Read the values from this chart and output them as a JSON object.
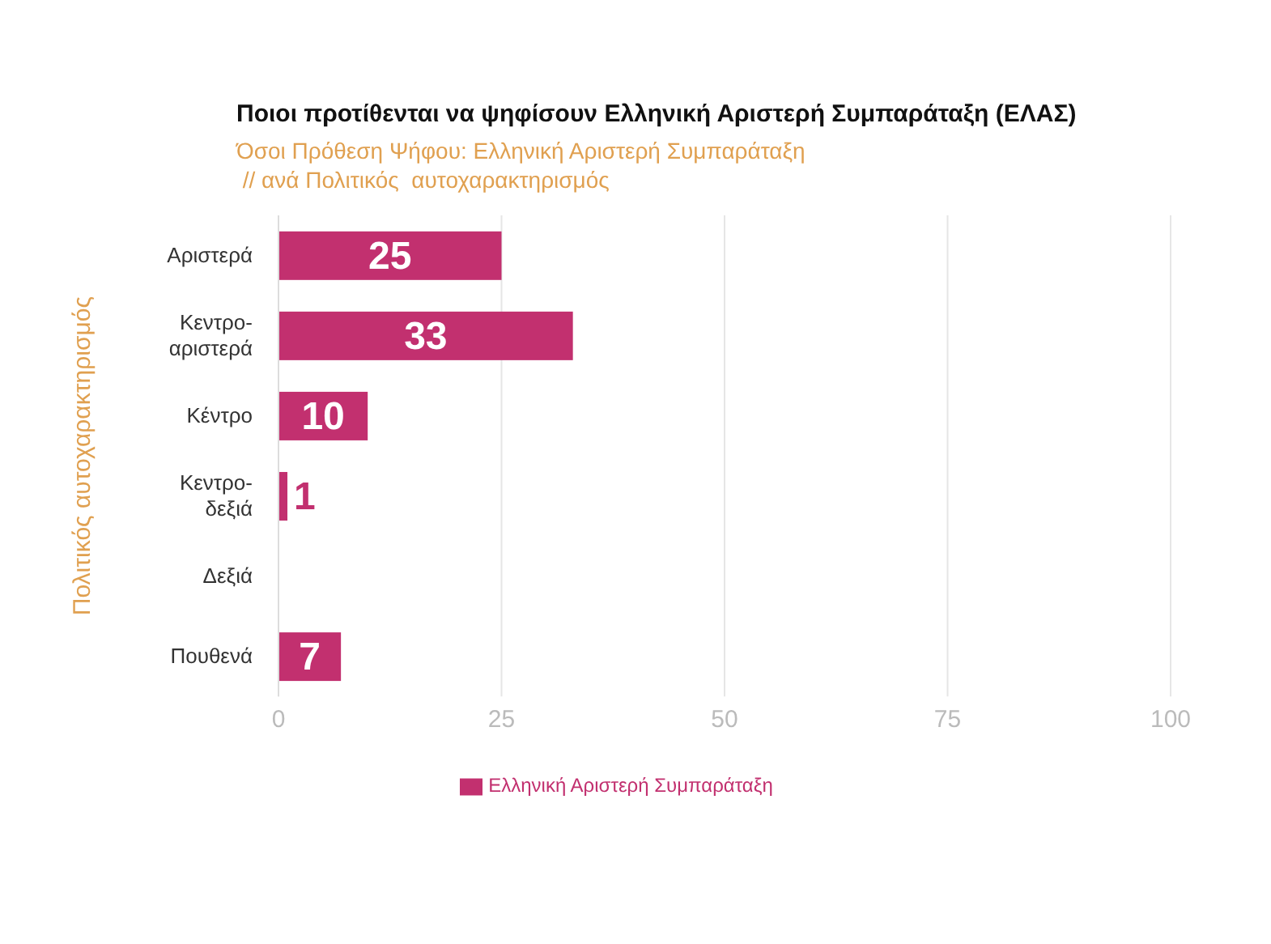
{
  "chart_data": {
    "type": "bar",
    "orientation": "horizontal",
    "title": "Ποιοι προτίθενται να ψηφίσουν Ελληνική Αριστερή Συμπαράταξη (ΕΛΑΣ)",
    "subtitle": "Όσοι Πρόθεση Ψήφου: Ελληνική Αριστερή Συμπαράταξη\n // ανά Πολιτικός  αυτοχαρακτηρισμός",
    "ylabel": "Πολιτικός  αυτοχαρακτηρισμός",
    "categories": [
      "Αριστερά",
      "Κεντρο-\nαριστερά",
      "Κέντρο",
      "Κεντρο-\nδεξιά",
      "Δεξιά",
      "Πουθενά"
    ],
    "series": [
      {
        "name": "Ελληνική Αριστερή Συμπαράταξη",
        "color": "#c2306f",
        "values": [
          25,
          33,
          10,
          1,
          0,
          7
        ],
        "value_labels": [
          "25",
          "33",
          "10",
          "1",
          null,
          "7"
        ]
      }
    ],
    "xlim": [
      0,
      100
    ],
    "xticks": [
      0,
      25,
      50,
      75,
      100
    ],
    "grid": "x",
    "legend": "bottom"
  }
}
